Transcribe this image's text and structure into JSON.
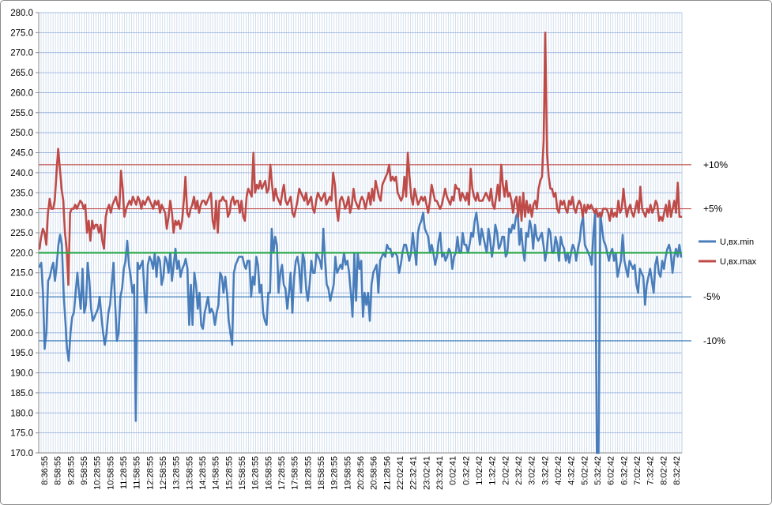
{
  "chart_data": {
    "type": "line",
    "ylim": [
      170.0,
      280.0
    ],
    "yticks": [
      "170.0",
      "175.0",
      "180.0",
      "185.0",
      "190.0",
      "195.0",
      "200.0",
      "205.0",
      "210.0",
      "215.0",
      "220.0",
      "225.0",
      "230.0",
      "235.0",
      "240.0",
      "245.0",
      "250.0",
      "255.0",
      "260.0",
      "265.0",
      "270.0",
      "275.0",
      "280.0"
    ],
    "xtick_labels": [
      "8:36:55",
      "8:58:55",
      "9:28:55",
      "9:58:55",
      "10:28:55",
      "10:58:55",
      "11:28:55",
      "11:58:55",
      "12:28:55",
      "12:58:55",
      "13:28:55",
      "13:58:55",
      "14:28:55",
      "14:58:55",
      "15:28:55",
      "15:58:55",
      "16:28:55",
      "16:58:55",
      "17:28:55",
      "17:58:55",
      "18:28:55",
      "18:58:55",
      "19:28:55",
      "19:58:55",
      "20:28:56",
      "20:58:56",
      "21:28:56",
      "22:02:41",
      "22:32:41",
      "23:02:41",
      "23:32:41",
      "0:02:41",
      "0:32:42",
      "1:02:42",
      "1:32:42",
      "2:02:42",
      "2:32:42",
      "3:02:42",
      "3:32:42",
      "4:02:42",
      "4:32:42",
      "5:02:42",
      "5:32:42",
      "6:02:42",
      "6:32:42",
      "7:02:42",
      "7:32:42",
      "8:02:42",
      "8:32:42"
    ],
    "series": [
      {
        "name": "U,вх.min",
        "color": "#4a7ebb",
        "values": [
          216.5,
          217.5,
          210.0,
          196.0,
          200.0,
          213.0,
          214.0,
          216.0,
          217.5,
          213.0,
          217.0,
          222.0,
          224.5,
          222.0,
          210.0,
          203.0,
          196.0,
          193.0,
          200.0,
          204.0,
          205.0,
          210.0,
          215.0,
          210.0,
          206.0,
          216.0,
          205.0,
          207.0,
          217.5,
          213.0,
          206.0,
          203.0,
          204.0,
          205.0,
          206.0,
          209.0,
          204.0,
          200.0,
          197.0,
          200.0,
          205.0,
          207.0,
          212.0,
          217.5,
          207.0,
          198.0,
          200.0,
          209.0,
          211.0,
          216.0,
          218.0,
          223.0,
          217.0,
          214.0,
          210.0,
          212.0,
          178.0,
          217.5,
          216.0,
          217.0,
          218.0,
          210.0,
          205.0,
          217.0,
          219.0,
          218.0,
          216.0,
          220.0,
          214.0,
          219.0,
          218.0,
          212.0,
          214.0,
          219.0,
          218.0,
          215.0,
          220.0,
          213.0,
          217.0,
          221.0,
          216.0,
          218.0,
          214.0,
          216.0,
          217.0,
          218.5,
          216.0,
          202.0,
          212.0,
          202.0,
          215.0,
          212.0,
          206.0,
          210.0,
          202.0,
          201.0,
          205.0,
          207.0,
          209.0,
          205.0,
          206.0,
          205.0,
          202.0,
          205.0,
          207.0,
          215.0,
          214.0,
          210.0,
          214.0,
          210.0,
          203.0,
          200.0,
          197.0,
          215.0,
          217.0,
          218.0,
          219.0,
          219.0,
          219.0,
          217.0,
          216.0,
          218.0,
          218.0,
          209.0,
          214.0,
          212.0,
          219.0,
          217.0,
          210.0,
          212.0,
          205.0,
          203.0,
          202.0,
          210.0,
          210.0,
          226.0,
          220.0,
          224.0,
          222.0,
          210.0,
          215.0,
          217.0,
          212.0,
          211.0,
          206.0,
          210.0,
          215.0,
          205.0,
          214.0,
          218.0,
          219.0,
          216.0,
          210.0,
          220.0,
          218.0,
          211.0,
          208.0,
          212.0,
          218.0,
          215.0,
          215.0,
          220.0,
          219.0,
          218.0,
          216.0,
          226.0,
          218.0,
          212.0,
          211.0,
          208.0,
          210.0,
          212.0,
          219.0,
          215.0,
          216.0,
          217.0,
          216.0,
          220.0,
          217.0,
          218.0,
          215.0,
          210.0,
          204.0,
          220.0,
          208.0,
          220.0,
          216.0,
          218.0,
          204.0,
          210.0,
          207.0,
          210.0,
          203.0,
          212.0,
          215.0,
          216.0,
          217.0,
          210.0,
          218.0,
          219.0,
          220.0,
          219.0,
          222.0,
          221.0,
          221.0,
          219.0,
          220.0,
          220.0,
          219.0,
          215.0,
          217.0,
          220.0,
          222.0,
          222.0,
          220.0,
          218.0,
          220.0,
          225.0,
          221.0,
          217.0,
          225.0,
          227.0,
          228.0,
          230.0,
          226.0,
          225.0,
          224.0,
          220.0,
          222.0,
          220.0,
          217.0,
          219.0,
          223.0,
          225.0,
          219.0,
          220.0,
          218.0,
          219.0,
          221.0,
          220.0,
          216.0,
          219.0,
          220.0,
          224.0,
          220.0,
          220.0,
          225.0,
          222.0,
          222.0,
          220.0,
          222.0,
          225.0,
          224.0,
          228.0,
          230.0,
          226.0,
          222.0,
          226.0,
          224.0,
          222.0,
          220.0,
          226.0,
          223.0,
          219.0,
          222.0,
          227.0,
          225.0,
          221.0,
          222.0,
          224.0,
          224.0,
          219.0,
          220.0,
          226.0,
          225.0,
          227.0,
          226.0,
          229.0,
          230.0,
          222.0,
          226.0,
          221.0,
          218.0,
          225.0,
          224.0,
          228.0,
          226.0,
          221.0,
          227.0,
          224.0,
          223.0,
          224.0,
          225.0,
          222.0,
          218.0,
          221.0,
          226.0,
          225.0,
          220.0,
          220.0,
          224.0,
          222.0,
          218.0,
          224.0,
          222.0,
          221.0,
          218.0,
          220.0,
          217.5,
          220.0,
          222.0,
          221.0,
          218.0,
          221.0,
          223.0,
          227.0,
          229.0,
          222.0,
          221.0,
          220.0,
          219.0,
          217.0,
          225.0,
          230.0,
          160.0,
          160.0,
          230.0,
          226.0,
          223.0,
          222.0,
          220.0,
          218.0,
          220.0,
          221.0,
          218.0,
          220.0,
          214.0,
          216.0,
          218.0,
          224.5,
          218.0,
          216.0,
          214.0,
          218.0,
          217.0,
          216.0,
          217.0,
          212.0,
          210.0,
          216.0,
          215.0,
          214.0,
          207.0,
          212.0,
          214.0,
          216.0,
          213.0,
          210.0,
          217.0,
          219.0,
          215.0,
          214.0,
          218.0,
          216.0,
          219.0,
          221.0,
          222.0,
          220.0,
          215.0,
          219.0,
          221.0,
          219.0,
          222.0,
          219.0
        ]
      },
      {
        "name": "U,вх.max",
        "color": "#be4b48",
        "values": [
          221.0,
          224.0,
          226.0,
          225.0,
          222.0,
          230.0,
          233.5,
          231.0,
          231.0,
          233.0,
          240.0,
          246.0,
          241.0,
          236.0,
          233.0,
          225.0,
          221.0,
          212.0,
          230.0,
          231.0,
          231.0,
          232.0,
          231.0,
          232.0,
          233.0,
          232.5,
          231.0,
          232.0,
          225.0,
          228.0,
          223.0,
          228.0,
          226.0,
          227.0,
          227.0,
          225.0,
          227.0,
          223.0,
          221.0,
          229.0,
          231.0,
          232.0,
          230.0,
          232.0,
          233.0,
          234.0,
          232.0,
          231.0,
          240.5,
          236.0,
          229.0,
          231.0,
          232.0,
          233.0,
          232.0,
          234.0,
          233.0,
          232.0,
          234.0,
          233.0,
          231.0,
          233.0,
          232.0,
          233.0,
          234.0,
          233.0,
          232.0,
          231.0,
          233.0,
          232.0,
          233.0,
          230.0,
          232.0,
          231.0,
          230.0,
          226.0,
          229.0,
          233.0,
          230.0,
          225.0,
          228.0,
          227.0,
          228.0,
          226.0,
          228.0,
          233.0,
          239.0,
          230.0,
          229.0,
          231.0,
          232.0,
          234.0,
          231.0,
          233.0,
          230.0,
          232.0,
          233.0,
          233.0,
          232.0,
          233.0,
          234.0,
          235.0,
          228.0,
          226.0,
          233.0,
          225.0,
          233.0,
          233.0,
          234.0,
          233.0,
          233.0,
          229.0,
          230.0,
          233.0,
          234.0,
          232.0,
          233.0,
          233.0,
          230.0,
          233.0,
          229.0,
          228.0,
          234.0,
          236.0,
          235.0,
          234.0,
          245.0,
          235.0,
          237.0,
          236.0,
          238.0,
          236.0,
          237.0,
          238.0,
          235.0,
          236.0,
          242.0,
          237.0,
          233.0,
          236.0,
          234.0,
          233.0,
          232.0,
          235.0,
          237.0,
          233.0,
          232.0,
          233.0,
          234.0,
          230.0,
          229.0,
          231.0,
          233.0,
          236.0,
          235.0,
          234.0,
          233.0,
          235.0,
          232.0,
          233.0,
          234.0,
          231.0,
          230.0,
          233.0,
          235.0,
          234.0,
          233.0,
          234.0,
          235.0,
          232.0,
          233.0,
          234.0,
          233.0,
          240.0,
          237.0,
          231.0,
          228.0,
          233.0,
          234.0,
          233.0,
          231.0,
          232.0,
          234.0,
          230.0,
          232.0,
          236.0,
          233.0,
          232.0,
          231.0,
          233.0,
          234.0,
          233.0,
          231.0,
          233.0,
          235.0,
          232.0,
          236.0,
          233.0,
          238.0,
          236.0,
          234.0,
          233.0,
          237.0,
          238.0,
          239.0,
          240.0,
          242.0,
          238.0,
          239.0,
          238.0,
          239.0,
          235.0,
          234.0,
          233.0,
          234.0,
          239.0,
          234.0,
          245.0,
          239.0,
          234.0,
          232.0,
          236.0,
          234.0,
          232.0,
          233.0,
          234.0,
          233.0,
          234.0,
          232.0,
          230.0,
          233.0,
          237.0,
          235.0,
          233.0,
          233.0,
          232.0,
          231.0,
          232.0,
          234.0,
          236.0,
          234.0,
          233.0,
          232.0,
          234.0,
          233.0,
          237.0,
          236.0,
          236.0,
          233.0,
          235.0,
          234.0,
          233.0,
          235.0,
          232.0,
          241.0,
          236.0,
          234.0,
          233.0,
          235.0,
          233.0,
          233.0,
          233.0,
          234.0,
          235.0,
          234.0,
          233.0,
          236.0,
          232.0,
          231.0,
          234.0,
          237.0,
          233.0,
          242.0,
          237.0,
          234.0,
          238.0,
          234.0,
          235.0,
          233.0,
          230.0,
          233.0,
          234.0,
          229.0,
          234.0,
          228.0,
          235.0,
          229.0,
          233.0,
          230.0,
          232.0,
          229.0,
          232.0,
          233.0,
          231.0,
          236.0,
          238.0,
          239.0,
          248.0,
          275.0,
          245.0,
          239.0,
          236.0,
          236.0,
          234.0,
          235.0,
          231.0,
          230.0,
          233.0,
          232.0,
          233.0,
          231.0,
          230.0,
          233.0,
          232.0,
          234.0,
          231.0,
          230.0,
          232.0,
          233.0,
          232.0,
          229.0,
          232.0,
          230.0,
          232.0,
          231.0,
          232.0,
          231.0,
          230.0,
          231.0,
          229.0,
          230.0,
          229.0,
          231.0,
          231.0,
          231.0,
          230.0,
          228.0,
          231.0,
          229.0,
          230.0,
          229.0,
          233.0,
          230.0,
          231.0,
          236.0,
          232.0,
          229.0,
          231.0,
          232.0,
          230.0,
          229.0,
          231.0,
          233.0,
          230.0,
          236.5,
          231.0,
          230.0,
          229.0,
          231.0,
          230.0,
          232.0,
          230.0,
          231.0,
          233.0,
          232.0,
          228.0,
          229.0,
          228.0,
          230.0,
          232.0,
          229.0,
          233.0,
          229.0,
          231.0,
          233.0,
          230.0,
          237.5,
          229.0,
          229.0
        ]
      }
    ],
    "reference_lines": [
      {
        "value": 242.0,
        "label": "+10%",
        "color": "#c0504d"
      },
      {
        "value": 231.0,
        "label": "+5%",
        "color": "#c0504d"
      },
      {
        "value": 220.0,
        "label": "",
        "color": "#2aa84a"
      },
      {
        "value": 209.0,
        "label": "-5%",
        "color": "#2e75b6"
      },
      {
        "value": 198.0,
        "label": "-10%",
        "color": "#2e75b6"
      }
    ],
    "legend": {
      "placement": "right",
      "entries": [
        "U,вх.min",
        "U,вх.max"
      ]
    },
    "grid": true
  }
}
